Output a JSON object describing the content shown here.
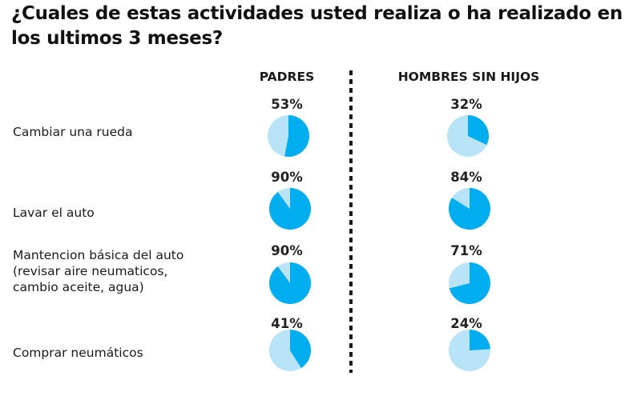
{
  "title": "¿Cuales de estas actividades usted realiza o ha realizado en los ultimos 3 meses?",
  "colors": {
    "filled": "#00aeef",
    "remainder": "#b9e3f7"
  },
  "chart_data": {
    "type": "pie",
    "title": "¿Cuales de estas actividades usted realiza o ha realizado en los ultimos 3 meses?",
    "groups": [
      "PADRES",
      "HOMBRES SIN HIJOS"
    ],
    "rows": [
      {
        "label": "Cambiar una rueda",
        "values": [
          53,
          32
        ],
        "value_labels": [
          "53%",
          "32%"
        ]
      },
      {
        "label": "Lavar el auto",
        "values": [
          90,
          84
        ],
        "value_labels": [
          "90%",
          "84%"
        ]
      },
      {
        "label": "Mantencion básica del auto\n(revisar aire neumaticos,\ncambio aceite, agua)",
        "values": [
          90,
          71
        ],
        "value_labels": [
          "90%",
          "71%"
        ]
      },
      {
        "label": "Comprar neumáticos",
        "values": [
          41,
          24
        ],
        "value_labels": [
          "41%",
          "24%"
        ]
      }
    ]
  }
}
